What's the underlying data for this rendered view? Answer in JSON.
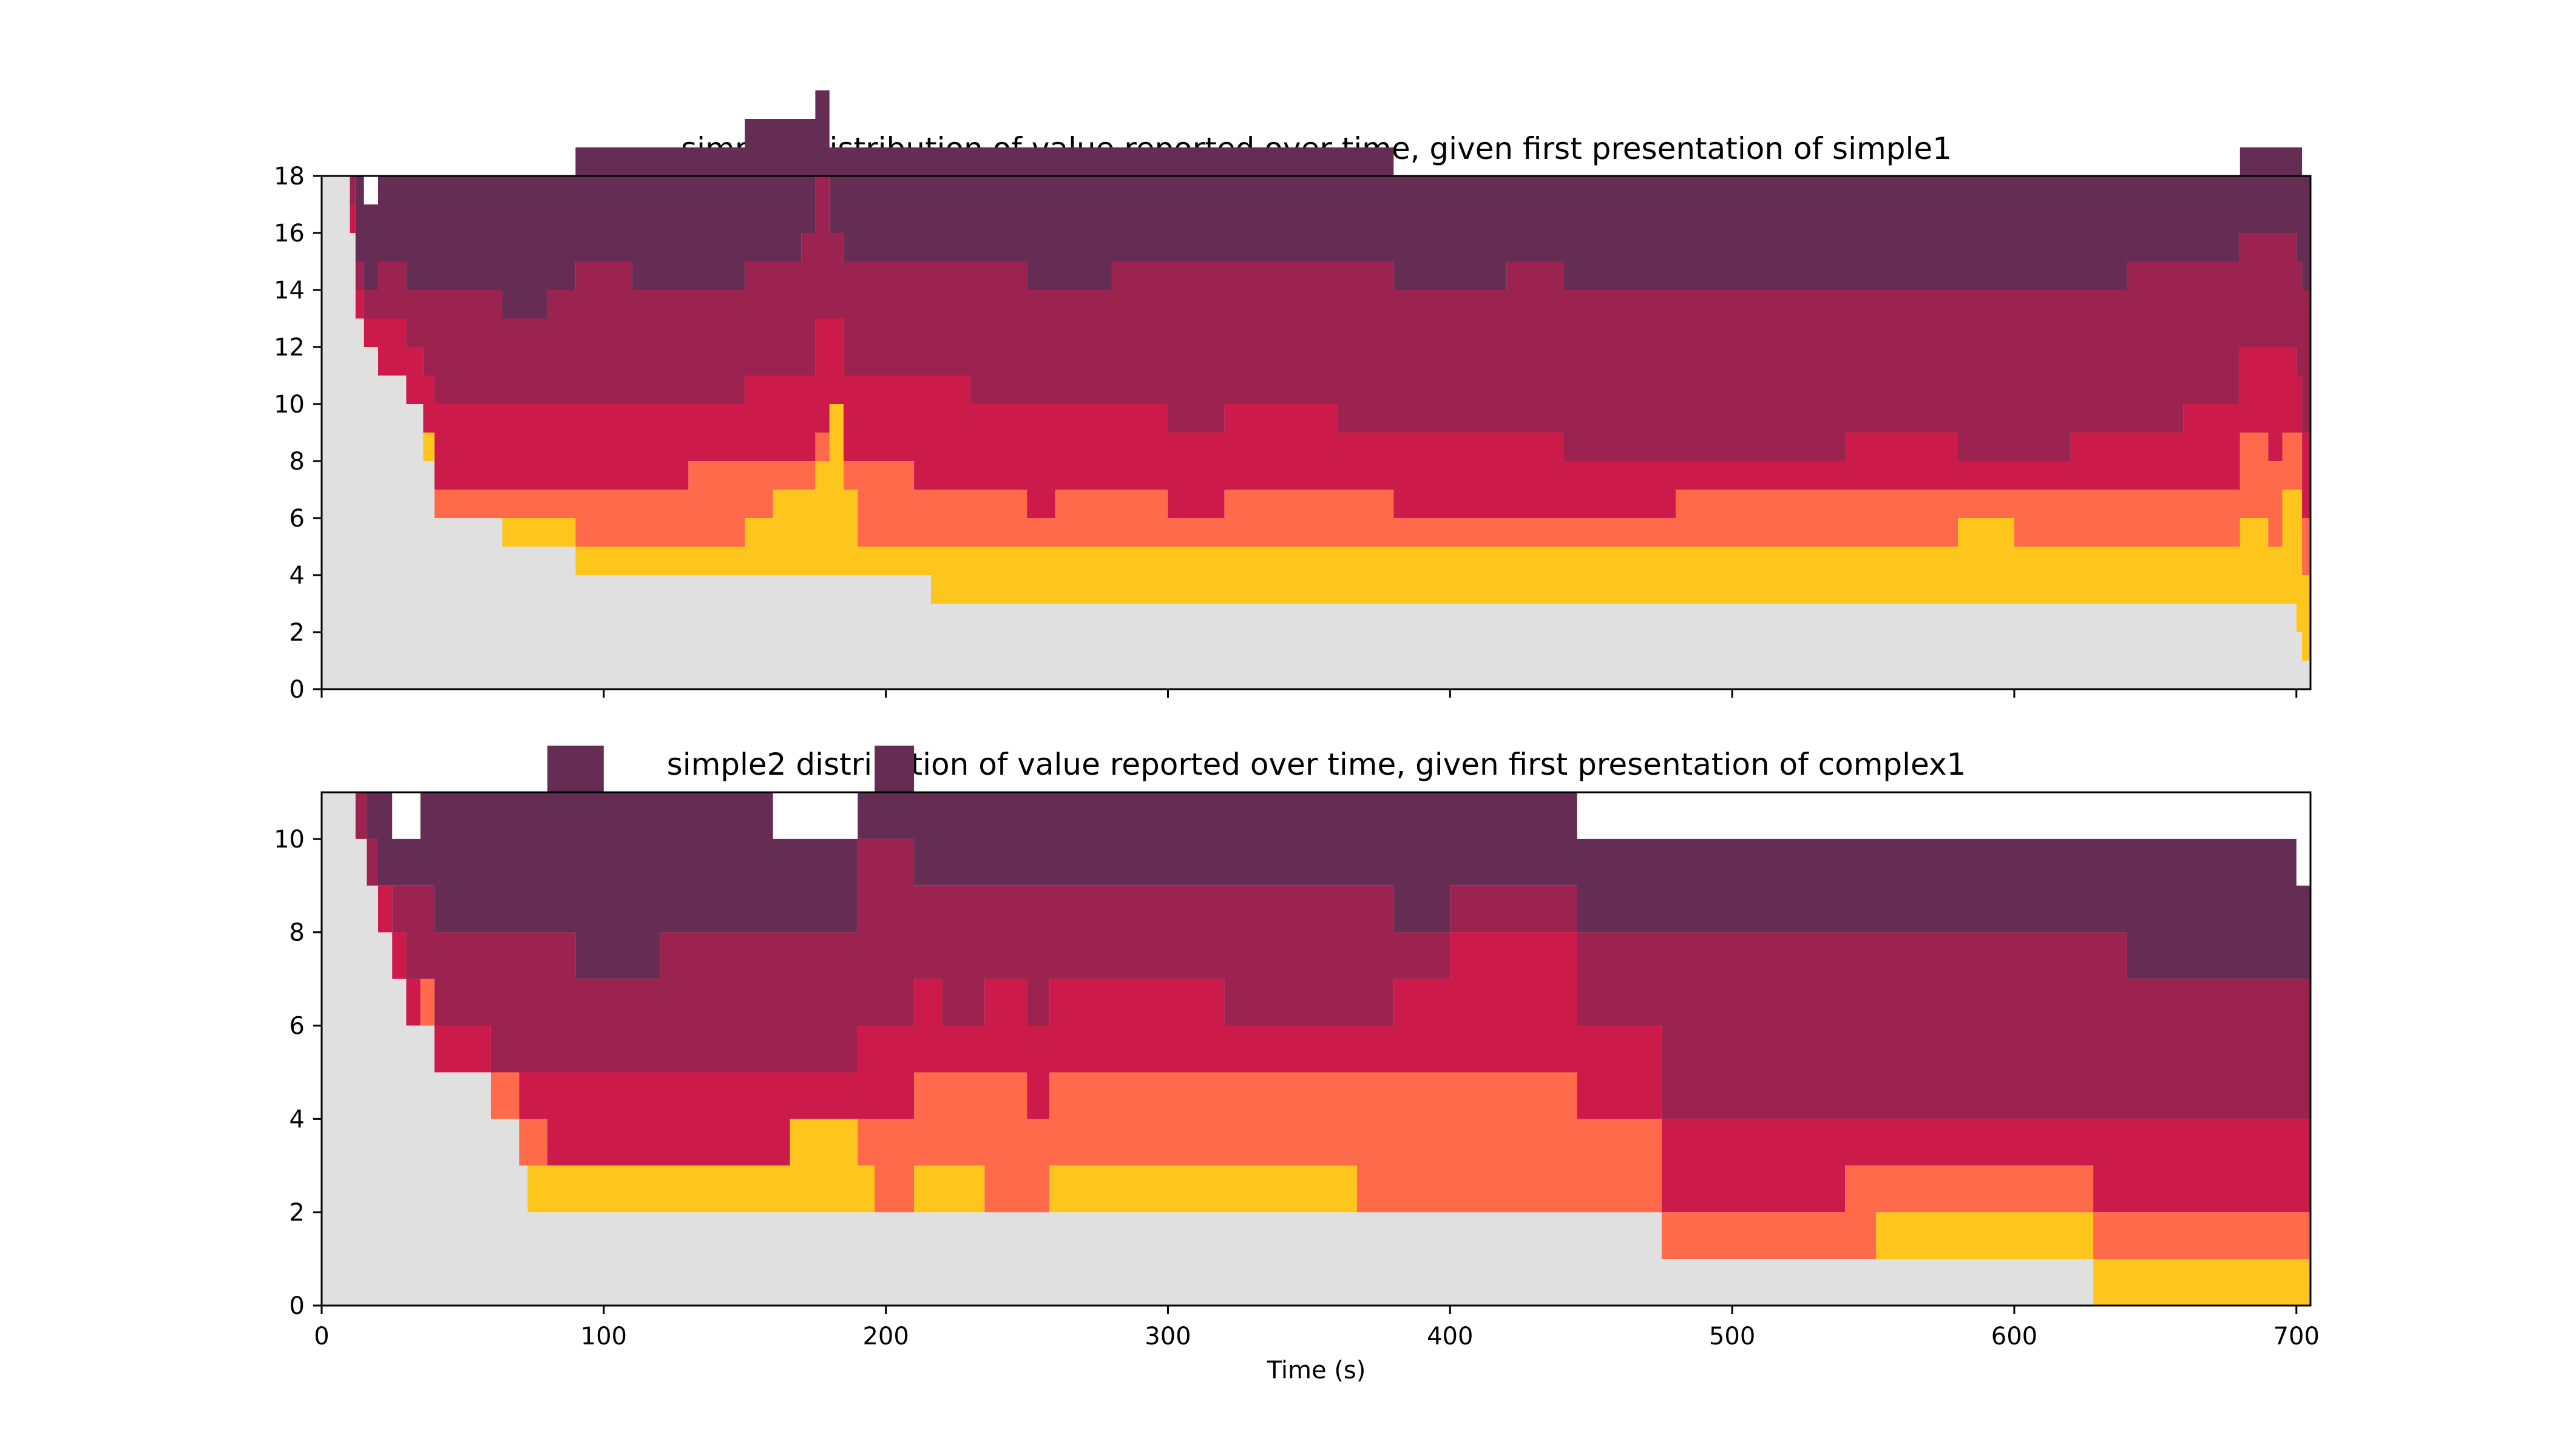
{
  "colors": {
    "gray": "#e0e0e0",
    "yellow": "#fec51c",
    "orange": "#fe6a4a",
    "red": "#cc1a4a",
    "maroon": "#9c2250",
    "plum": "#652d54"
  },
  "chart_data": [
    {
      "type": "area",
      "subtype": "stacked-step",
      "title": "simple2 distribution of value reported over time, given first presentation of simple1",
      "xlabel": "",
      "ylabel": "",
      "xlim": [
        0,
        705
      ],
      "ylim": [
        0,
        18
      ],
      "xticks": [
        0,
        100,
        200,
        300,
        400,
        500,
        600,
        700
      ],
      "show_xticklabels": false,
      "yticks": [
        0,
        2,
        4,
        6,
        8,
        10,
        12,
        14,
        16,
        18
      ],
      "grid": false,
      "legend": "none",
      "x": [
        0,
        8,
        10,
        12,
        15,
        20,
        30,
        36,
        40,
        50,
        64,
        70,
        80,
        90,
        100,
        110,
        120,
        130,
        140,
        150,
        160,
        170,
        175,
        180,
        185,
        190,
        200,
        210,
        216,
        230,
        250,
        260,
        280,
        300,
        320,
        340,
        360,
        380,
        400,
        420,
        440,
        460,
        480,
        500,
        520,
        540,
        560,
        580,
        600,
        620,
        640,
        660,
        680,
        690,
        695,
        700,
        702,
        705
      ],
      "series": [
        {
          "color": "gray",
          "values": [
            18,
            18,
            16,
            13,
            12,
            11,
            10,
            8,
            6,
            6,
            5,
            5,
            5,
            4,
            4,
            4,
            4,
            4,
            4,
            4,
            4,
            4,
            4,
            4,
            4,
            4,
            4,
            4,
            3,
            3,
            3,
            3,
            3,
            3,
            3,
            3,
            3,
            3,
            3,
            3,
            3,
            3,
            3,
            3,
            3,
            3,
            3,
            3,
            3,
            3,
            3,
            3,
            3,
            3,
            3,
            2,
            1,
            0
          ]
        },
        {
          "color": "yellow",
          "values": [
            0,
            0,
            0,
            0,
            0,
            0,
            0,
            1,
            0,
            0,
            1,
            1,
            1,
            1,
            1,
            1,
            1,
            1,
            1,
            2,
            3,
            3,
            4,
            6,
            3,
            1,
            1,
            1,
            2,
            2,
            2,
            2,
            2,
            2,
            2,
            2,
            2,
            2,
            2,
            2,
            2,
            2,
            2,
            2,
            2,
            2,
            2,
            3,
            2,
            2,
            2,
            2,
            3,
            2,
            4,
            5,
            3,
            2
          ]
        },
        {
          "color": "orange",
          "values": [
            0,
            0,
            0,
            0,
            0,
            0,
            0,
            0,
            1,
            1,
            1,
            1,
            1,
            2,
            2,
            2,
            2,
            3,
            3,
            2,
            1,
            1,
            1,
            0,
            1,
            3,
            3,
            2,
            2,
            2,
            1,
            2,
            2,
            1,
            2,
            2,
            2,
            1,
            1,
            1,
            1,
            1,
            2,
            2,
            2,
            2,
            2,
            1,
            2,
            2,
            2,
            2,
            3,
            3,
            2,
            2,
            2,
            1
          ]
        },
        {
          "color": "red",
          "values": [
            0,
            0,
            1,
            1,
            1,
            2,
            2,
            2,
            3,
            3,
            3,
            3,
            3,
            3,
            3,
            3,
            3,
            2,
            2,
            3,
            3,
            3,
            4,
            3,
            3,
            3,
            3,
            4,
            4,
            3,
            4,
            3,
            3,
            3,
            3,
            3,
            2,
            3,
            3,
            3,
            2,
            2,
            1,
            1,
            1,
            2,
            2,
            1,
            1,
            2,
            2,
            3,
            3,
            4,
            3,
            2,
            3,
            2
          ]
        },
        {
          "color": "maroon",
          "values": [
            0,
            0,
            1,
            1,
            1,
            2,
            2,
            3,
            4,
            4,
            3,
            3,
            4,
            5,
            5,
            4,
            4,
            4,
            4,
            4,
            4,
            5,
            5,
            3,
            4,
            4,
            4,
            4,
            4,
            5,
            4,
            4,
            5,
            6,
            5,
            5,
            6,
            5,
            5,
            6,
            6,
            6,
            6,
            6,
            6,
            5,
            5,
            6,
            6,
            5,
            6,
            5,
            4,
            4,
            4,
            4,
            5,
            6
          ]
        },
        {
          "color": "plum",
          "values": [
            0,
            0,
            0,
            3,
            3,
            3,
            4,
            4,
            4,
            4,
            5,
            5,
            4,
            4,
            4,
            5,
            5,
            5,
            5,
            5,
            5,
            4,
            3,
            3,
            4,
            4,
            4,
            4,
            4,
            4,
            5,
            5,
            4,
            4,
            4,
            4,
            4,
            4,
            4,
            3,
            4,
            4,
            4,
            4,
            4,
            4,
            4,
            4,
            4,
            4,
            3,
            3,
            3,
            3,
            3,
            4,
            4,
            6
          ]
        }
      ]
    },
    {
      "type": "area",
      "subtype": "stacked-step",
      "title": "simple2 distribution of value reported over time, given first presentation of complex1",
      "xlabel": "Time (s)",
      "ylabel": "",
      "xlim": [
        0,
        705
      ],
      "ylim": [
        0,
        11
      ],
      "xticks": [
        0,
        100,
        200,
        300,
        400,
        500,
        600,
        700
      ],
      "show_xticklabels": true,
      "yticks": [
        0,
        2,
        4,
        6,
        8,
        10
      ],
      "grid": false,
      "legend": "none",
      "x": [
        0,
        8,
        12,
        16,
        20,
        25,
        30,
        35,
        40,
        50,
        60,
        70,
        73,
        80,
        90,
        100,
        120,
        140,
        160,
        166,
        180,
        190,
        196,
        210,
        220,
        235,
        250,
        258,
        270,
        290,
        300,
        320,
        340,
        367,
        380,
        400,
        420,
        445,
        460,
        475,
        500,
        520,
        540,
        551,
        570,
        590,
        610,
        628,
        640,
        660,
        680,
        700,
        705
      ],
      "series": [
        {
          "color": "gray",
          "values": [
            11,
            11,
            10,
            9,
            8,
            7,
            6,
            6,
            5,
            5,
            4,
            3,
            2,
            2,
            2,
            2,
            2,
            2,
            2,
            2,
            2,
            2,
            2,
            2,
            2,
            2,
            2,
            2,
            2,
            2,
            2,
            2,
            2,
            2,
            2,
            2,
            2,
            2,
            2,
            1,
            1,
            1,
            1,
            1,
            1,
            1,
            1,
            0,
            0,
            0,
            0,
            0,
            0
          ]
        },
        {
          "color": "yellow",
          "values": [
            0,
            0,
            0,
            0,
            0,
            0,
            0,
            0,
            0,
            0,
            0,
            0,
            1,
            1,
            1,
            1,
            1,
            1,
            1,
            2,
            2,
            1,
            0,
            1,
            1,
            0,
            0,
            1,
            1,
            1,
            1,
            1,
            1,
            0,
            0,
            0,
            0,
            0,
            0,
            0,
            0,
            0,
            0,
            1,
            1,
            1,
            1,
            1,
            1,
            1,
            1,
            1,
            1
          ]
        },
        {
          "color": "orange",
          "values": [
            0,
            0,
            0,
            0,
            0,
            0,
            0,
            1,
            0,
            0,
            1,
            1,
            1,
            0,
            0,
            0,
            0,
            0,
            0,
            0,
            0,
            1,
            2,
            2,
            2,
            3,
            2,
            2,
            2,
            2,
            2,
            2,
            2,
            3,
            3,
            3,
            3,
            2,
            2,
            1,
            1,
            1,
            2,
            1,
            1,
            1,
            1,
            1,
            1,
            1,
            1,
            1,
            1
          ]
        },
        {
          "color": "red",
          "values": [
            0,
            0,
            0,
            0,
            1,
            1,
            1,
            0,
            1,
            1,
            0,
            1,
            1,
            2,
            2,
            2,
            2,
            2,
            2,
            1,
            1,
            2,
            2,
            2,
            1,
            2,
            2,
            2,
            2,
            2,
            2,
            1,
            1,
            1,
            2,
            3,
            3,
            2,
            2,
            2,
            2,
            2,
            1,
            1,
            1,
            1,
            1,
            2,
            2,
            2,
            2,
            2,
            2
          ]
        },
        {
          "color": "maroon",
          "values": [
            0,
            0,
            1,
            1,
            0,
            1,
            2,
            2,
            2,
            2,
            3,
            3,
            3,
            3,
            2,
            2,
            3,
            3,
            3,
            3,
            3,
            4,
            4,
            2,
            3,
            2,
            3,
            2,
            2,
            2,
            2,
            3,
            3,
            3,
            1,
            1,
            1,
            2,
            2,
            4,
            4,
            4,
            4,
            4,
            4,
            4,
            4,
            4,
            3,
            3,
            3,
            3,
            2
          ]
        },
        {
          "color": "plum",
          "values": [
            0,
            0,
            0,
            1,
            2,
            1,
            1,
            2,
            3,
            3,
            3,
            3,
            3,
            4,
            5,
            4,
            3,
            3,
            2,
            2,
            2,
            1,
            2,
            2,
            2,
            2,
            2,
            2,
            2,
            2,
            2,
            2,
            2,
            2,
            3,
            2,
            2,
            2,
            2,
            2,
            2,
            2,
            2,
            2,
            2,
            2,
            2,
            2,
            3,
            3,
            3,
            2,
            4
          ]
        }
      ]
    }
  ]
}
